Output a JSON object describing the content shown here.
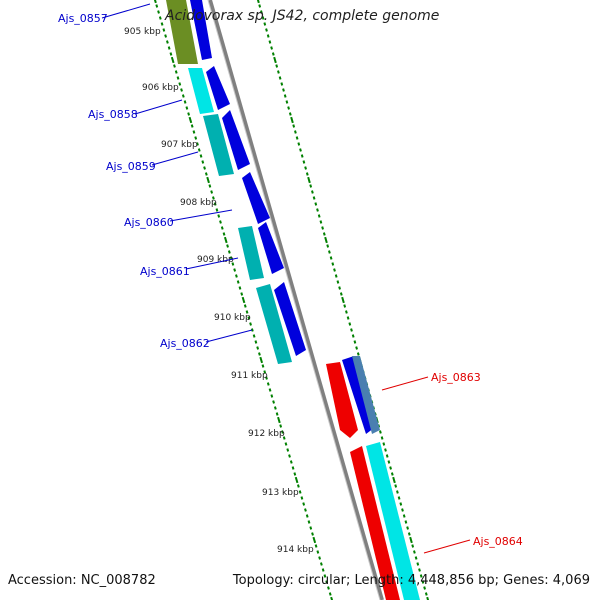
{
  "title": "Acidovorax sp. JS42, complete genome",
  "footer": {
    "accession": "Accession: NC_008782",
    "summary": "Topology: circular; Length: 4,448,856 bp; Genes: 4,069"
  },
  "colors": {
    "backbone": "#808080",
    "tick": "#008000",
    "forward_label": "#0000cc",
    "reverse_label": "#e00000",
    "cds_blue": "#0000dd",
    "cds_cyan": "#00e5e5",
    "cds_teal": "#00b0b0",
    "cds_olive": "#6b8e23",
    "cds_red": "#ee0000",
    "cds_steel": "#4a7fb0"
  },
  "kbp_labels": [
    "905 kbp",
    "906 kbp",
    "907 kbp",
    "908 kbp",
    "909 kbp",
    "910 kbp",
    "911 kbp",
    "912 kbp",
    "913 kbp",
    "914 kbp"
  ],
  "genes": [
    {
      "label": "Ajs_0857",
      "strand": "forward"
    },
    {
      "label": "Ajs_0858",
      "strand": "forward"
    },
    {
      "label": "Ajs_0859",
      "strand": "forward"
    },
    {
      "label": "Ajs_0860",
      "strand": "forward"
    },
    {
      "label": "Ajs_0861",
      "strand": "forward"
    },
    {
      "label": "Ajs_0862",
      "strand": "forward"
    },
    {
      "label": "Ajs_0863",
      "strand": "reverse"
    },
    {
      "label": "Ajs_0864",
      "strand": "reverse"
    }
  ]
}
